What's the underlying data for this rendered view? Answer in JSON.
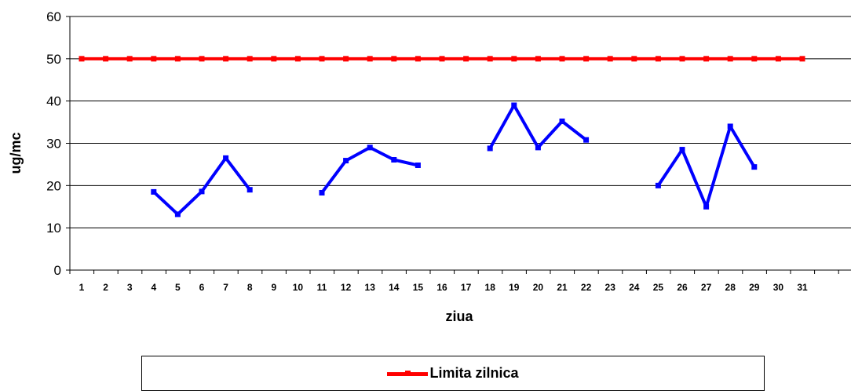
{
  "chart_data": {
    "type": "line",
    "xlabel": "ziua",
    "ylabel": "ug/mc",
    "ylim": [
      0,
      60
    ],
    "yticks": [
      0,
      10,
      20,
      30,
      40,
      50,
      60
    ],
    "categories": [
      "1",
      "2",
      "3",
      "4",
      "5",
      "6",
      "7",
      "8",
      "9",
      "10",
      "11",
      "12",
      "13",
      "14",
      "15",
      "16",
      "17",
      "18",
      "19",
      "20",
      "21",
      "22",
      "23",
      "24",
      "25",
      "26",
      "27",
      "28",
      "29",
      "30",
      "31"
    ],
    "grid": "horizontal",
    "legend_position": "bottom",
    "series": [
      {
        "name": "Limita zilnica",
        "color": "#ff0000",
        "marker_color": "#ff0000",
        "values": [
          50,
          50,
          50,
          50,
          50,
          50,
          50,
          50,
          50,
          50,
          50,
          50,
          50,
          50,
          50,
          50,
          50,
          50,
          50,
          50,
          50,
          50,
          50,
          50,
          50,
          50,
          50,
          50,
          50,
          50,
          50
        ]
      },
      {
        "color": "#0000ff",
        "marker_color": "#0000ff",
        "values": [
          null,
          null,
          null,
          18.5,
          13.2,
          18.6,
          26.5,
          19,
          null,
          null,
          18.3,
          25.9,
          29,
          26.1,
          24.8,
          null,
          null,
          28.8,
          39,
          29,
          35.2,
          30.8,
          null,
          null,
          20,
          28.5,
          15,
          34,
          24.4,
          null,
          null
        ]
      }
    ]
  }
}
